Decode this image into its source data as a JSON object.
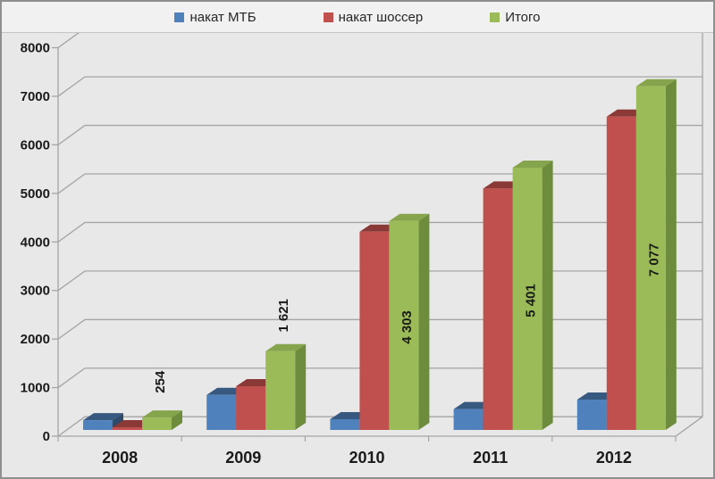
{
  "window": {
    "background": "#E8E8E8",
    "border_color": "#8F8F8F",
    "legend_background": "#F1F1F1"
  },
  "legend": {
    "items": [
      {
        "label": "накат МТБ",
        "color": "#4F81BD"
      },
      {
        "label": "накат шоссер",
        "color": "#C0504D"
      },
      {
        "label": "Итого",
        "color": "#9BBB59"
      }
    ]
  },
  "chart_data": {
    "type": "bar",
    "subtype": "3d-clustered-column",
    "title": "",
    "categories": [
      "2008",
      "2009",
      "2010",
      "2011",
      "2012"
    ],
    "series": [
      {
        "name": "накат МТБ",
        "values": [
          200,
          720,
          220,
          430,
          625
        ],
        "color": {
          "front": "#4F81BD",
          "top": "#38597F",
          "side": "#2E4A69"
        }
      },
      {
        "name": "накат шоссер",
        "values": [
          54,
          901,
          4083,
          4971,
          6452
        ],
        "color": {
          "front": "#C0504D",
          "top": "#8B3936",
          "side": "#943B38"
        }
      },
      {
        "name": "Итого",
        "values": [
          254,
          1621,
          4303,
          5401,
          7077
        ],
        "color": {
          "front": "#9BBB59",
          "top": "#86A44C",
          "side": "#6D8C3C"
        },
        "data_labels": [
          "254",
          "1 621",
          "4 303",
          "5 401",
          "7 077"
        ]
      }
    ],
    "ylim": [
      0,
      8000
    ],
    "ytick_step": 1000,
    "yticks": [
      "0",
      "1000",
      "2000",
      "3000",
      "4000",
      "5000",
      "6000",
      "7000",
      "8000"
    ],
    "xlabel": "",
    "ylabel": "",
    "grid": true,
    "grid_color": "#A4A4A4",
    "legend_position": "top",
    "text_color": "#1A1A1A"
  }
}
